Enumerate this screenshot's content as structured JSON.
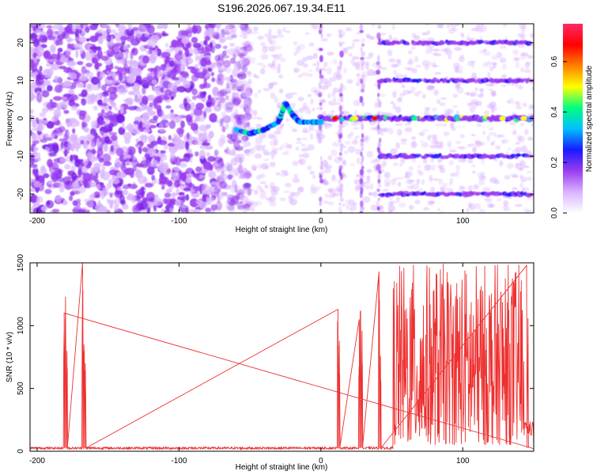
{
  "chart_data": [
    {
      "type": "heatmap",
      "title": "S196.2026.067.19.34.E11",
      "xlabel": "Height of straight line (km)",
      "ylabel": "Frequency (Hz)",
      "xlim": [
        -205,
        150
      ],
      "ylim": [
        -25,
        25
      ],
      "xticks": [
        -200,
        -100,
        0,
        100
      ],
      "yticks": [
        -20,
        -10,
        0,
        10,
        20
      ],
      "colorbar": {
        "label": "Normalized spectral amplitude",
        "range": [
          0.0,
          0.75
        ],
        "ticks": [
          0.0,
          0.2,
          0.4,
          0.6
        ],
        "colormap": [
          "#ffffff",
          "#d9b3ff",
          "#9a3cf0",
          "#1a1aff",
          "#00bfff",
          "#00ff80",
          "#ffff00",
          "#ff8000",
          "#ff0000",
          "#ff2a6a"
        ]
      },
      "features": {
        "noise_region_x": [
          -205,
          -60
        ],
        "tracked_curve": [
          {
            "x": -60,
            "y": -3
          },
          {
            "x": -50,
            "y": -4
          },
          {
            "x": -40,
            "y": -3
          },
          {
            "x": -30,
            "y": -1
          },
          {
            "x": -25,
            "y": 4
          },
          {
            "x": -20,
            "y": 1
          },
          {
            "x": -15,
            "y": -1
          },
          {
            "x": -5,
            "y": -1
          },
          {
            "x": 0,
            "y": -1
          }
        ],
        "harmonic_lines_hz": [
          -20,
          -10,
          0,
          10,
          20
        ],
        "harmonic_x_range": [
          42,
          150
        ],
        "center_line_x_range": [
          0,
          150
        ],
        "vertical_stripes_x": [
          0,
          14,
          29,
          41
        ]
      }
    },
    {
      "type": "line",
      "title": "",
      "xlabel": "Height of straight line (km)",
      "ylabel": "SNR (10 * v/v)",
      "xlim": [
        -205,
        150
      ],
      "ylim": [
        0,
        1500
      ],
      "xticks": [
        -200,
        -100,
        0,
        100
      ],
      "yticks": [
        0,
        500,
        1000,
        1500
      ],
      "series": [
        {
          "color": "#ee3030",
          "baseline": 25,
          "spikes": [
            {
              "x": -181,
              "y": 1100
            },
            {
              "x": -180,
              "y": 1230
            },
            {
              "x": -179,
              "y": 800
            },
            {
              "x": -168,
              "y": 1500
            },
            {
              "x": -167,
              "y": 850
            },
            {
              "x": -166,
              "y": 700
            },
            {
              "x": 12,
              "y": 1130
            },
            {
              "x": 13,
              "y": 880
            },
            {
              "x": 27,
              "y": 1050
            },
            {
              "x": 28,
              "y": 1120
            },
            {
              "x": 29,
              "y": 960
            },
            {
              "x": 41,
              "y": 1430
            },
            {
              "x": 42,
              "y": 760
            },
            {
              "x": 145,
              "y": 1480
            },
            {
              "x": 146,
              "y": 1060
            }
          ],
          "dense_region": {
            "x_range": [
              51,
              143
            ],
            "min": 50,
            "max": 1500
          }
        }
      ]
    }
  ]
}
